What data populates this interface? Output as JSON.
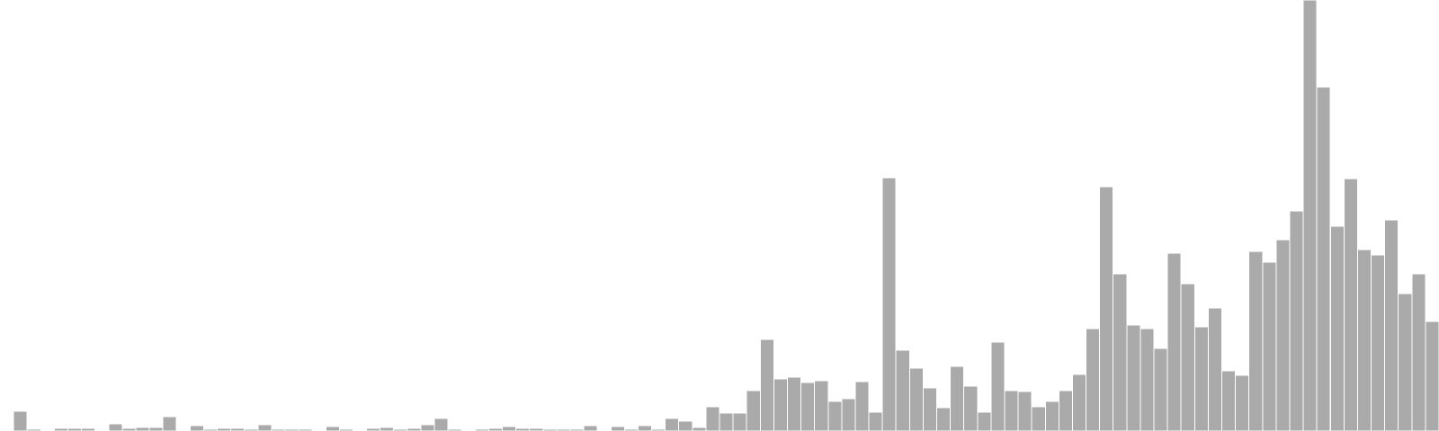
{
  "chart_data": {
    "type": "bar",
    "title": "",
    "xlabel": "",
    "ylabel": "",
    "grid": false,
    "legend": "none",
    "bar_color": "#aaaaaa",
    "ylim": [
      0,
      480
    ],
    "values": [
      1,
      22,
      2,
      1,
      3,
      3,
      3,
      1,
      8,
      3,
      4,
      4,
      16,
      0,
      6,
      2,
      3,
      3,
      2,
      7,
      2,
      2,
      2,
      1,
      5,
      2,
      0,
      3,
      4,
      2,
      3,
      7,
      14,
      2,
      1,
      2,
      3,
      5,
      3,
      3,
      2,
      2,
      2,
      6,
      1,
      5,
      2,
      6,
      2,
      14,
      11,
      4,
      27,
      20,
      20,
      45,
      102,
      58,
      60,
      54,
      56,
      33,
      36,
      55,
      21,
      282,
      90,
      70,
      48,
      26,
      72,
      50,
      21,
      99,
      45,
      44,
      27,
      33,
      45,
      63,
      114,
      272,
      175,
      118,
      114,
      92,
      198,
      164,
      116,
      137,
      67,
      62,
      200,
      188,
      213,
      245,
      480,
      383,
      228,
      281,
      202,
      196,
      235,
      153,
      175,
      122
    ]
  }
}
